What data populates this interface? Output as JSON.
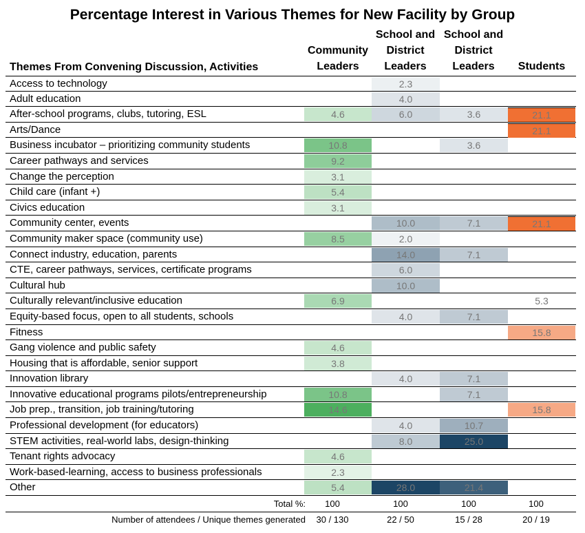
{
  "chart_data": {
    "type": "table",
    "title": "Percentage Interest in Various Themes for New Facility by Group",
    "row_header": "Themes From Convening Discussion, Activities",
    "columns": [
      {
        "lines": [
          "Community",
          "Leaders"
        ],
        "color": "#4caf5e"
      },
      {
        "lines": [
          "School and",
          "District",
          "Leaders"
        ],
        "color": "#1c4565"
      },
      {
        "lines": [
          "School and",
          "District",
          "Leaders"
        ],
        "color": "#1c4565"
      },
      {
        "lines": [
          "Students"
        ],
        "color": "#f07033"
      }
    ],
    "rows": [
      {
        "theme": "Access to technology",
        "values": [
          null,
          2.3,
          null,
          null
        ],
        "shift": [
          0,
          1,
          0,
          0
        ]
      },
      {
        "theme": "Adult education",
        "values": [
          null,
          4.0,
          null,
          null
        ]
      },
      {
        "theme": "After-school programs, clubs, tutoring, ESL",
        "values": [
          4.6,
          6.0,
          3.6,
          21.1
        ]
      },
      {
        "theme": "Arts/Dance",
        "values": [
          null,
          null,
          null,
          21.1
        ]
      },
      {
        "theme": "Business incubator – prioritizing community students",
        "values": [
          10.8,
          null,
          3.6,
          null
        ]
      },
      {
        "theme": "Career pathways and services",
        "values": [
          9.2,
          null,
          null,
          null
        ]
      },
      {
        "theme": "Change the perception",
        "values": [
          3.1,
          null,
          null,
          null
        ]
      },
      {
        "theme": "Child care (infant +)",
        "values": [
          5.4,
          null,
          null,
          null
        ]
      },
      {
        "theme": "Civics education",
        "values": [
          3.1,
          null,
          null,
          null
        ]
      },
      {
        "theme": "Community center, events",
        "values": [
          null,
          10.0,
          7.1,
          21.1
        ]
      },
      {
        "theme": "Community maker space (community use)",
        "values": [
          8.5,
          2.0,
          null,
          null
        ]
      },
      {
        "theme": "Connect industry, education, parents",
        "values": [
          null,
          14.0,
          7.1,
          null
        ]
      },
      {
        "theme": "CTE, career pathways, services, certificate programs",
        "values": [
          null,
          6.0,
          null,
          null
        ]
      },
      {
        "theme": "Cultural hub",
        "values": [
          null,
          10.0,
          null,
          null
        ]
      },
      {
        "theme": "Culturally relevant/inclusive education",
        "values": [
          6.9,
          null,
          null,
          5.3
        ]
      },
      {
        "theme": "Equity-based focus, open to all students, schools",
        "values": [
          null,
          4.0,
          7.1,
          null
        ]
      },
      {
        "theme": "Fitness",
        "values": [
          null,
          null,
          null,
          15.8
        ]
      },
      {
        "theme": "Gang violence and public safety",
        "values": [
          4.6,
          null,
          null,
          null
        ]
      },
      {
        "theme": "Housing that is affordable, senior support",
        "values": [
          3.8,
          null,
          null,
          null
        ]
      },
      {
        "theme": "Innovation library",
        "values": [
          null,
          4.0,
          7.1,
          null
        ]
      },
      {
        "theme": "Innovative educational programs pilots/entrepreneurship",
        "values": [
          10.8,
          null,
          7.1,
          null
        ]
      },
      {
        "theme": "Job prep., transition, job training/tutoring",
        "values": [
          14.6,
          null,
          null,
          15.8
        ]
      },
      {
        "theme": "Professional development (for educators)",
        "values": [
          null,
          4.0,
          10.7,
          null
        ]
      },
      {
        "theme": "STEM activities, real-world labs, design-thinking",
        "values": [
          null,
          8.0,
          25.0,
          null
        ]
      },
      {
        "theme": "Tenant rights advocacy",
        "values": [
          4.6,
          null,
          null,
          null
        ]
      },
      {
        "theme": "Work-based-learning, access to business professionals",
        "values": [
          2.3,
          null,
          null,
          null
        ]
      },
      {
        "theme": "Other",
        "values": [
          5.4,
          28.0,
          21.4,
          null
        ]
      }
    ],
    "footer": [
      {
        "label": "Total %:",
        "values": [
          "100",
          "100",
          "100",
          "100"
        ]
      },
      {
        "label": "Number of attendees / Unique themes generated",
        "values": [
          "30 / 130",
          "22 / 50",
          "15 / 28",
          "20 / 19"
        ]
      }
    ]
  }
}
